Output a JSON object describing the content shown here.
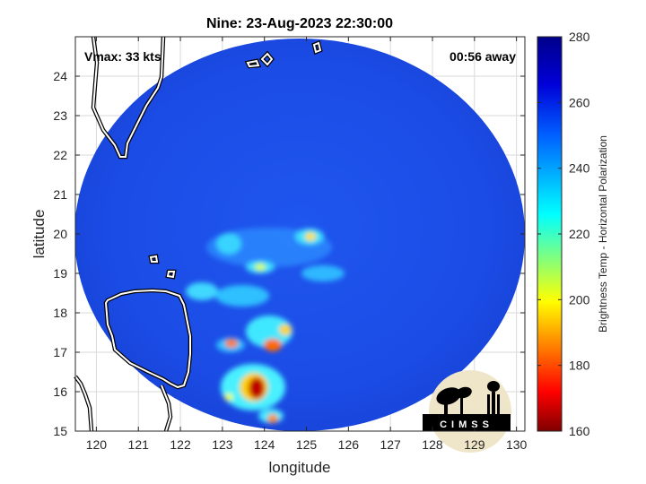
{
  "chart_data": {
    "type": "heatmap",
    "title": "Nine: 23-Aug-2023 22:30:00",
    "xlabel": "longitude",
    "ylabel": "latitude",
    "xlim": [
      119.5,
      130.2
    ],
    "ylim": [
      15,
      25
    ],
    "xticks": [
      120,
      121,
      122,
      123,
      124,
      125,
      126,
      127,
      128,
      129,
      130
    ],
    "yticks": [
      15,
      16,
      17,
      18,
      19,
      20,
      21,
      22,
      23,
      24
    ],
    "grid": true,
    "annotations": {
      "vmax": "Vmax: 33 kts",
      "away": "00:56 away"
    },
    "colorbar": {
      "label": "Brightness Temp - Horizontal Polarization",
      "clim": [
        160,
        280
      ],
      "ticks": [
        160,
        180,
        200,
        220,
        240,
        260,
        280
      ],
      "colormap": [
        "#800000",
        "#ff0000",
        "#ffff00",
        "#00ffff",
        "#0000ff",
        "#000080"
      ]
    },
    "swath": {
      "center_lon": 124.8,
      "center_lat": 19.6,
      "radius_deg": 5.35,
      "background_temp": 265
    },
    "features": [
      {
        "lon": 124.0,
        "lat": 16.0,
        "temp": 170
      },
      {
        "lon": 124.4,
        "lat": 17.1,
        "temp": 195
      },
      {
        "lon": 123.3,
        "lat": 17.1,
        "temp": 205
      },
      {
        "lon": 124.6,
        "lat": 17.6,
        "temp": 215
      },
      {
        "lon": 124.0,
        "lat": 19.1,
        "temp": 215
      },
      {
        "lon": 125.3,
        "lat": 20.0,
        "temp": 210
      },
      {
        "lon": 123.5,
        "lat": 19.9,
        "temp": 225
      },
      {
        "lon": 124.3,
        "lat": 15.3,
        "temp": 225
      },
      {
        "lon": 123.6,
        "lat": 16.3,
        "temp": 225
      }
    ]
  },
  "logo": {
    "text": "CIMSS"
  }
}
